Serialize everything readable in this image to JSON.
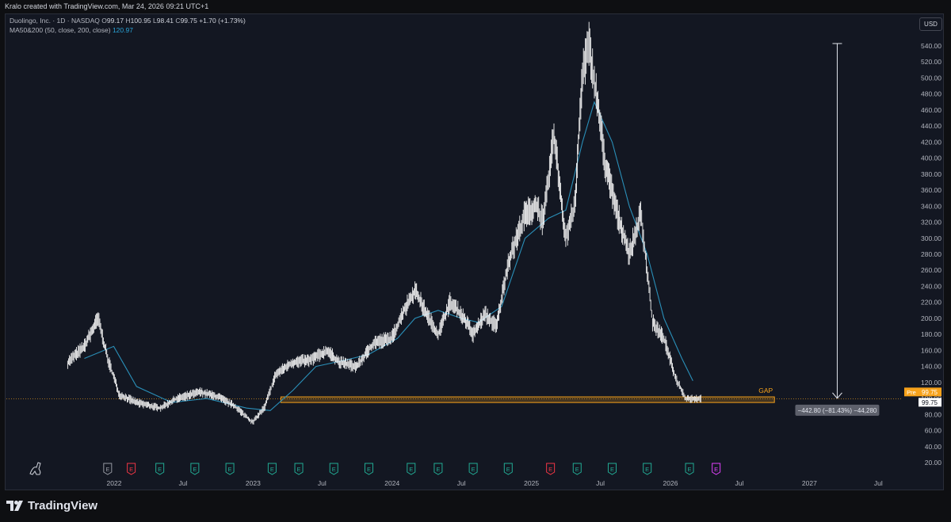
{
  "header": {
    "credit": "Kralo created with TradingView.com, Mar 24, 2026 09:21 UTC+1"
  },
  "legend": {
    "symbol": "Duolingo, Inc. · 1D · NASDAQ",
    "o_label": "O",
    "o_value": "99.17",
    "h_label": "H",
    "h_value": "100.95",
    "l_label": "L",
    "l_value": "98.41",
    "c_label": "C",
    "c_value": "99.75",
    "change": "+1.70 (+1.73%)",
    "ma_label": "MA50&200 (50, close, 200, close)",
    "ma_value": "120.97"
  },
  "currency_button": "USD",
  "branding": {
    "logo_text": "TradingView"
  },
  "colors": {
    "background": "#131722",
    "price": "#ffffff",
    "ma": "#2a8fb8",
    "gap": "#f7a21b",
    "axis_text": "#b2b5be"
  },
  "chart_data": {
    "type": "candlestick",
    "symbol": "Duolingo, Inc.",
    "y_ticks": [
      "20.00",
      "40.00",
      "60.00",
      "80.00",
      "100.00",
      "120.00",
      "140.00",
      "160.00",
      "180.00",
      "200.00",
      "220.00",
      "240.00",
      "260.00",
      "280.00",
      "300.00",
      "320.00",
      "340.00",
      "360.00",
      "380.00",
      "400.00",
      "420.00",
      "440.00",
      "460.00",
      "480.00",
      "500.00",
      "520.00",
      "540.00"
    ],
    "ylim": [
      10,
      555
    ],
    "x_ticks": [
      "2022",
      "Jul",
      "2023",
      "Jul",
      "2024",
      "Jul",
      "2025",
      "Jul",
      "2026",
      "Jul",
      "2027",
      "Jul"
    ],
    "x_range": [
      "2021-08-15",
      "2027-11-01"
    ],
    "price_series": [
      [
        "2021-09-01",
        145
      ],
      [
        "2021-10-15",
        165
      ],
      [
        "2021-11-20",
        200
      ],
      [
        "2021-12-15",
        150
      ],
      [
        "2022-01-15",
        105
      ],
      [
        "2022-03-01",
        95
      ],
      [
        "2022-05-01",
        88
      ],
      [
        "2022-06-15",
        100
      ],
      [
        "2022-08-15",
        108
      ],
      [
        "2022-10-01",
        102
      ],
      [
        "2022-11-15",
        90
      ],
      [
        "2022-12-31",
        70
      ],
      [
        "2023-02-01",
        90
      ],
      [
        "2023-03-01",
        130
      ],
      [
        "2023-04-15",
        145
      ],
      [
        "2023-06-01",
        148
      ],
      [
        "2023-07-15",
        160
      ],
      [
        "2023-08-15",
        145
      ],
      [
        "2023-10-01",
        140
      ],
      [
        "2023-11-15",
        170
      ],
      [
        "2023-12-31",
        175
      ],
      [
        "2024-02-01",
        210
      ],
      [
        "2024-03-01",
        235
      ],
      [
        "2024-04-01",
        205
      ],
      [
        "2024-05-01",
        180
      ],
      [
        "2024-06-01",
        220
      ],
      [
        "2024-07-01",
        205
      ],
      [
        "2024-08-01",
        180
      ],
      [
        "2024-09-01",
        205
      ],
      [
        "2024-10-01",
        190
      ],
      [
        "2024-11-01",
        270
      ],
      [
        "2024-12-15",
        330
      ],
      [
        "2025-01-15",
        340
      ],
      [
        "2025-02-01",
        320
      ],
      [
        "2025-03-01",
        430
      ],
      [
        "2025-04-01",
        300
      ],
      [
        "2025-04-25",
        340
      ],
      [
        "2025-05-15",
        510
      ],
      [
        "2025-06-01",
        540
      ],
      [
        "2025-06-20",
        480
      ],
      [
        "2025-07-15",
        390
      ],
      [
        "2025-08-15",
        330
      ],
      [
        "2025-09-15",
        280
      ],
      [
        "2025-10-15",
        330
      ],
      [
        "2025-11-01",
        260
      ],
      [
        "2025-11-15",
        195
      ],
      [
        "2025-12-15",
        175
      ],
      [
        "2026-01-15",
        125
      ],
      [
        "2026-02-10",
        100
      ],
      [
        "2026-03-24",
        99.75
      ]
    ],
    "ma_series": [
      [
        "2021-10-15",
        150
      ],
      [
        "2021-12-31",
        165
      ],
      [
        "2022-03-01",
        115
      ],
      [
        "2022-06-01",
        95
      ],
      [
        "2022-09-01",
        100
      ],
      [
        "2022-12-15",
        88
      ],
      [
        "2023-02-15",
        85
      ],
      [
        "2023-04-15",
        110
      ],
      [
        "2023-06-15",
        140
      ],
      [
        "2023-09-01",
        148
      ],
      [
        "2023-11-01",
        155
      ],
      [
        "2024-01-15",
        175
      ],
      [
        "2024-03-01",
        200
      ],
      [
        "2024-05-01",
        210
      ],
      [
        "2024-07-01",
        200
      ],
      [
        "2024-08-15",
        195
      ],
      [
        "2024-10-15",
        215
      ],
      [
        "2024-12-15",
        300
      ],
      [
        "2025-02-15",
        325
      ],
      [
        "2025-04-01",
        335
      ],
      [
        "2025-05-15",
        420
      ],
      [
        "2025-06-15",
        470
      ],
      [
        "2025-08-01",
        420
      ],
      [
        "2025-09-15",
        340
      ],
      [
        "2025-11-01",
        280
      ],
      [
        "2025-12-15",
        200
      ],
      [
        "2026-01-31",
        150
      ],
      [
        "2026-03-01",
        122
      ]
    ],
    "gap_zone": {
      "label": "GAP",
      "from": "2023-03-15",
      "to": "2026-10-01",
      "y_low": 95,
      "y_high": 102
    },
    "measure": {
      "label": "−442.80 (−81.43%) −44,280",
      "from_price": 543,
      "to_price": 100.2,
      "date": "2027-03-15"
    },
    "pre_tag": {
      "label": "Pre",
      "price": "99.75"
    },
    "last_price_tag": "99.75",
    "events": [
      {
        "date": "2021-12-15",
        "type": "E",
        "color": "#9598a1"
      },
      {
        "date": "2022-02-15",
        "type": "E",
        "color": "#f23645"
      },
      {
        "date": "2022-05-01",
        "type": "E",
        "color": "#22ab94"
      },
      {
        "date": "2022-08-01",
        "type": "E",
        "color": "#22ab94"
      },
      {
        "date": "2022-11-01",
        "type": "E",
        "color": "#22ab94"
      },
      {
        "date": "2023-02-20",
        "type": "E",
        "color": "#22ab94"
      },
      {
        "date": "2023-05-01",
        "type": "E",
        "color": "#22ab94"
      },
      {
        "date": "2023-08-01",
        "type": "E",
        "color": "#22ab94"
      },
      {
        "date": "2023-11-01",
        "type": "E",
        "color": "#22ab94"
      },
      {
        "date": "2024-02-20",
        "type": "E",
        "color": "#22ab94"
      },
      {
        "date": "2024-05-01",
        "type": "E",
        "color": "#22ab94"
      },
      {
        "date": "2024-08-01",
        "type": "E",
        "color": "#22ab94"
      },
      {
        "date": "2024-11-01",
        "type": "E",
        "color": "#22ab94"
      },
      {
        "date": "2025-02-20",
        "type": "E",
        "color": "#f23645"
      },
      {
        "date": "2025-05-01",
        "type": "E",
        "color": "#22ab94"
      },
      {
        "date": "2025-08-01",
        "type": "E",
        "color": "#22ab94"
      },
      {
        "date": "2025-11-01",
        "type": "E",
        "color": "#22ab94"
      },
      {
        "date": "2026-02-20",
        "type": "E",
        "color": "#22ab94"
      },
      {
        "date": "2026-05-01",
        "type": "E",
        "color": "#e040fb"
      }
    ]
  }
}
